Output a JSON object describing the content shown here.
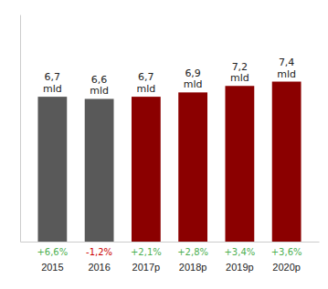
{
  "chart_data": {
    "type": "bar",
    "categories": [
      "2015",
      "2016",
      "2017p",
      "2018p",
      "2019p",
      "2020p"
    ],
    "values": [
      6.7,
      6.6,
      6.7,
      6.9,
      7.2,
      7.4
    ],
    "value_labels": [
      "6,7\nmld",
      "6,6\nmld",
      "6,7\nmld",
      "6,9\nmld",
      "7,2\nmld",
      "7,4\nmld"
    ],
    "colors": [
      "#595959",
      "#595959",
      "#8b0000",
      "#8b0000",
      "#8b0000",
      "#8b0000"
    ],
    "annotations": [
      {
        "text": "+6,6%",
        "color": "#4caf50"
      },
      {
        "text": "-1,2%",
        "color": "#cc0000"
      },
      {
        "text": "+2,1%",
        "color": "#4caf50"
      },
      {
        "text": "+2,8%",
        "color": "#4caf50"
      },
      {
        "text": "+3,4%",
        "color": "#4caf50"
      },
      {
        "text": "+3,6%",
        "color": "#4caf50"
      }
    ],
    "ylim": [
      0,
      10.5
    ],
    "data_labels": true,
    "tick_labels": "x"
  }
}
